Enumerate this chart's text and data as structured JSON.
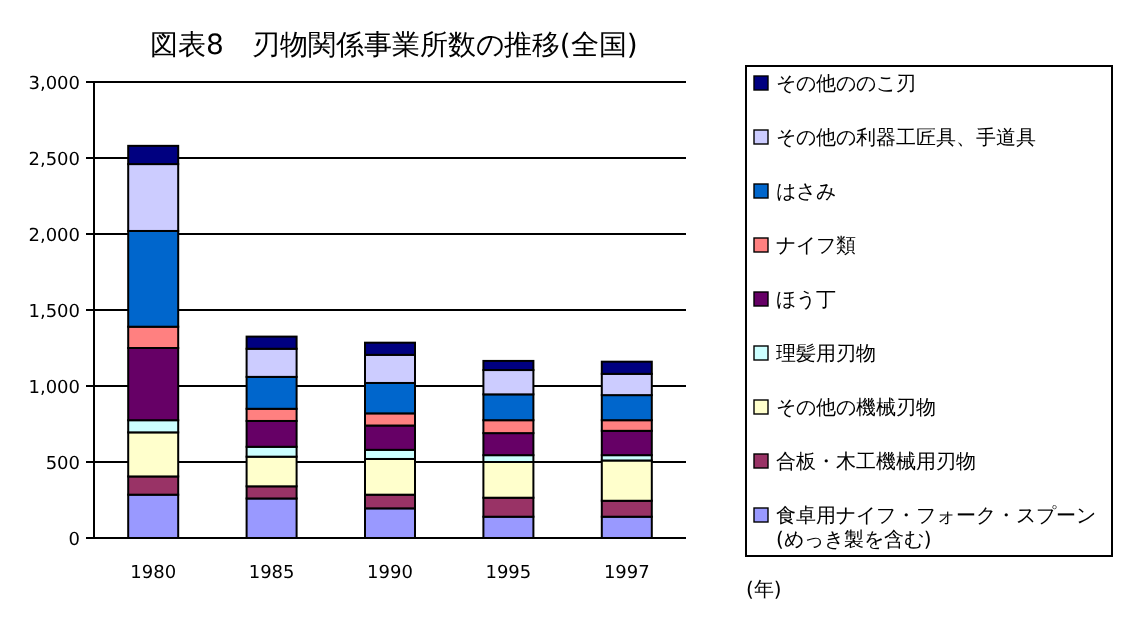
{
  "chart_data": {
    "type": "bar",
    "stacked": true,
    "title": "図表8　刃物関係事業所数の推移(全国)",
    "categories": [
      "1980",
      "1985",
      "1990",
      "1995",
      "1997"
    ],
    "ylim": [
      0,
      3000
    ],
    "yticks": [
      {
        "value": 0,
        "label": "0"
      },
      {
        "value": 500,
        "label": "500"
      },
      {
        "value": 1000,
        "label": "1,000"
      },
      {
        "value": 1500,
        "label": "1,500"
      },
      {
        "value": 2000,
        "label": "2,000"
      },
      {
        "value": 2500,
        "label": "2,500"
      },
      {
        "value": 3000,
        "label": "3,000"
      }
    ],
    "grid": "y",
    "legend": "right",
    "annotations": [
      "(年)"
    ],
    "series": [
      {
        "name": "食卓用ナイフ・フォーク・スプーン(めっき製を含む)",
        "color": "#9999ff",
        "values": [
          285,
          260,
          195,
          140,
          140
        ]
      },
      {
        "name": "合板・木工機械用刃物",
        "color": "#993366",
        "values": [
          120,
          80,
          90,
          125,
          105
        ]
      },
      {
        "name": "その他の機械刃物",
        "color": "#ffffcc",
        "values": [
          290,
          195,
          235,
          235,
          265
        ]
      },
      {
        "name": "理髪用刃物",
        "color": "#ccffff",
        "values": [
          80,
          65,
          60,
          45,
          35
        ]
      },
      {
        "name": "ほう丁",
        "color": "#660066",
        "values": [
          475,
          170,
          160,
          145,
          160
        ]
      },
      {
        "name": "ナイフ類",
        "color": "#ff8080",
        "values": [
          140,
          80,
          80,
          85,
          70
        ]
      },
      {
        "name": "はさみ",
        "color": "#0066cc",
        "values": [
          630,
          210,
          200,
          170,
          165
        ]
      },
      {
        "name": "その他の利器工匠具、手道具",
        "color": "#ccccff",
        "values": [
          440,
          185,
          185,
          160,
          140
        ]
      },
      {
        "name": "その他ののこ刃",
        "color": "#000080",
        "values": [
          120,
          80,
          80,
          60,
          80
        ]
      }
    ]
  }
}
